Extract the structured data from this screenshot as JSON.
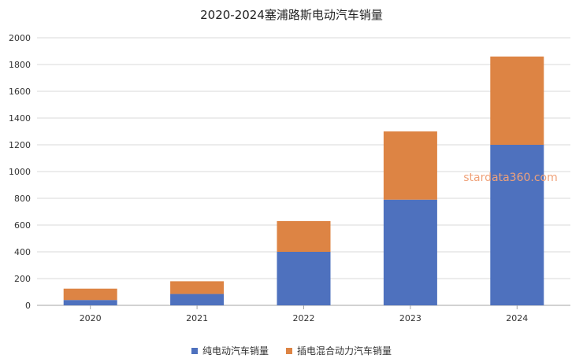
{
  "chart_data": {
    "type": "bar",
    "stacked": true,
    "title": "2020-2024塞浦路斯电动汽车销量",
    "categories": [
      "2020",
      "2021",
      "2022",
      "2023",
      "2024"
    ],
    "series": [
      {
        "name": "纯电动汽车销量",
        "values": [
          40,
          85,
          400,
          790,
          1200
        ],
        "color": "#4e71be"
      },
      {
        "name": "插电混合动力汽车销量",
        "values": [
          85,
          95,
          230,
          510,
          660
        ],
        "color": "#dd8444"
      }
    ],
    "ylim": [
      0,
      2000
    ],
    "yticks": [
      0,
      200,
      400,
      600,
      800,
      1000,
      1200,
      1400,
      1600,
      1800,
      2000
    ],
    "grid": true,
    "legend": "bottom-center",
    "watermark": {
      "text": "stardata360.com",
      "color": "#f0a27a"
    }
  }
}
